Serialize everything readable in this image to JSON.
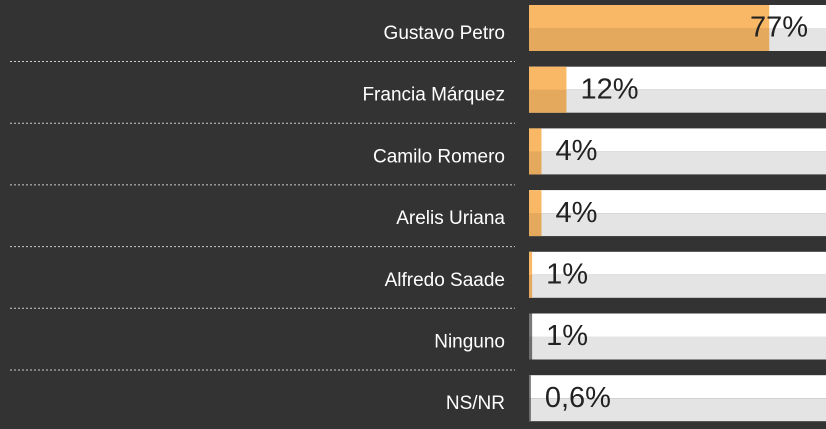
{
  "chart_data": {
    "type": "bar",
    "orientation": "horizontal",
    "categories": [
      "Gustavo Petro",
      "Francia Márquez",
      "Camilo Romero",
      "Arelis Uriana",
      "Alfredo Saade",
      "Ninguno",
      "NS/NR"
    ],
    "values": [
      77,
      12,
      4,
      4,
      1,
      1,
      0.6
    ],
    "value_labels": [
      "77%",
      "12%",
      "4%",
      "4%",
      "1%",
      "1%",
      "0,6%"
    ],
    "colors": [
      "#f9b865",
      "#f9b865",
      "#f9b865",
      "#f9b865",
      "#f9b865",
      "#777777",
      "#777777"
    ],
    "xlim": [
      0,
      100
    ]
  }
}
